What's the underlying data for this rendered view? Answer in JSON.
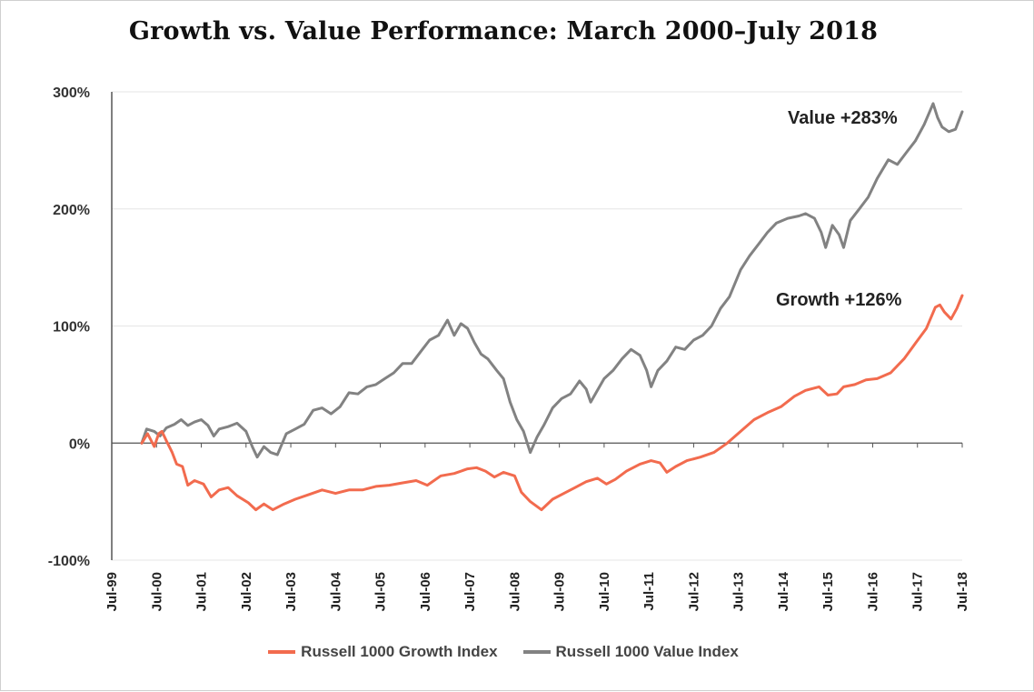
{
  "colors": {
    "growth": "#f26b4e",
    "value": "#828282",
    "axis": "#555555",
    "grid": "#e6e6e6"
  },
  "chart_data": {
    "type": "line",
    "title": "Growth vs. Value Performance: March 2000–July 2018",
    "xlabel": "",
    "ylabel": "",
    "ylim": [
      -100,
      300
    ],
    "yticks": [
      -100,
      0,
      100,
      200,
      300
    ],
    "ytick_labels": [
      "-100%",
      "0%",
      "100%",
      "200%",
      "300%"
    ],
    "xlim": [
      1999.5,
      2018.5
    ],
    "xticks": [
      1999.5,
      2000.5,
      2001.5,
      2002.5,
      2003.5,
      2004.5,
      2005.5,
      2006.5,
      2007.5,
      2008.5,
      2009.5,
      2010.5,
      2011.5,
      2012.5,
      2013.5,
      2014.5,
      2015.5,
      2016.5,
      2017.5,
      2018.5
    ],
    "xtick_labels": [
      "Jul-99",
      "Jul-00",
      "Jul-01",
      "Jul-02",
      "Jul-03",
      "Jul-04",
      "Jul-05",
      "Jul-06",
      "Jul-07",
      "Jul-08",
      "Jul-09",
      "Jul-10",
      "Jul-11",
      "Jul-12",
      "Jul-13",
      "Jul-14",
      "Jul-15",
      "Jul-16",
      "Jul-17",
      "Jul-18"
    ],
    "grid": "horizontal",
    "legend_position": "bottom",
    "series": [
      {
        "name": "Russell 1000 Growth Index",
        "color": "#f26b4e",
        "end_label": "Growth +126%",
        "points": [
          [
            2000.17,
            0
          ],
          [
            2000.3,
            8
          ],
          [
            2000.45,
            -3
          ],
          [
            2000.55,
            8
          ],
          [
            2000.62,
            10
          ],
          [
            2000.72,
            2
          ],
          [
            2000.85,
            -8
          ],
          [
            2000.95,
            -18
          ],
          [
            2001.08,
            -20
          ],
          [
            2001.2,
            -36
          ],
          [
            2001.35,
            -32
          ],
          [
            2001.55,
            -35
          ],
          [
            2001.72,
            -46
          ],
          [
            2001.9,
            -40
          ],
          [
            2002.1,
            -38
          ],
          [
            2002.3,
            -45
          ],
          [
            2002.55,
            -51
          ],
          [
            2002.72,
            -57
          ],
          [
            2002.9,
            -52
          ],
          [
            2003.1,
            -57
          ],
          [
            2003.35,
            -52
          ],
          [
            2003.6,
            -48
          ],
          [
            2003.9,
            -44
          ],
          [
            2004.2,
            -40
          ],
          [
            2004.5,
            -43
          ],
          [
            2004.8,
            -40
          ],
          [
            2005.1,
            -40
          ],
          [
            2005.4,
            -37
          ],
          [
            2005.7,
            -36
          ],
          [
            2006.0,
            -34
          ],
          [
            2006.3,
            -32
          ],
          [
            2006.55,
            -36
          ],
          [
            2006.85,
            -28
          ],
          [
            2007.15,
            -26
          ],
          [
            2007.45,
            -22
          ],
          [
            2007.65,
            -21
          ],
          [
            2007.85,
            -24
          ],
          [
            2008.05,
            -29
          ],
          [
            2008.25,
            -25
          ],
          [
            2008.5,
            -28
          ],
          [
            2008.65,
            -42
          ],
          [
            2008.85,
            -50
          ],
          [
            2009.1,
            -57
          ],
          [
            2009.35,
            -48
          ],
          [
            2009.6,
            -43
          ],
          [
            2009.85,
            -38
          ],
          [
            2010.1,
            -33
          ],
          [
            2010.35,
            -30
          ],
          [
            2010.55,
            -35
          ],
          [
            2010.75,
            -31
          ],
          [
            2011.0,
            -24
          ],
          [
            2011.3,
            -18
          ],
          [
            2011.55,
            -15
          ],
          [
            2011.75,
            -17
          ],
          [
            2011.9,
            -25
          ],
          [
            2012.1,
            -20
          ],
          [
            2012.35,
            -15
          ],
          [
            2012.65,
            -12
          ],
          [
            2012.95,
            -8
          ],
          [
            2013.25,
            0
          ],
          [
            2013.55,
            10
          ],
          [
            2013.85,
            20
          ],
          [
            2014.15,
            26
          ],
          [
            2014.45,
            31
          ],
          [
            2014.75,
            40
          ],
          [
            2015.0,
            45
          ],
          [
            2015.3,
            48
          ],
          [
            2015.5,
            41
          ],
          [
            2015.7,
            42
          ],
          [
            2015.85,
            48
          ],
          [
            2016.1,
            50
          ],
          [
            2016.35,
            54
          ],
          [
            2016.6,
            55
          ],
          [
            2016.9,
            60
          ],
          [
            2017.2,
            72
          ],
          [
            2017.45,
            85
          ],
          [
            2017.7,
            98
          ],
          [
            2017.9,
            116
          ],
          [
            2018.0,
            118
          ],
          [
            2018.1,
            112
          ],
          [
            2018.25,
            106
          ],
          [
            2018.38,
            115
          ],
          [
            2018.5,
            126
          ]
        ]
      },
      {
        "name": "Russell 1000 Value Index",
        "color": "#828282",
        "end_label": "Value +283%",
        "points": [
          [
            2000.17,
            0
          ],
          [
            2000.28,
            12
          ],
          [
            2000.45,
            10
          ],
          [
            2000.58,
            6
          ],
          [
            2000.72,
            13
          ],
          [
            2000.9,
            16
          ],
          [
            2001.05,
            20
          ],
          [
            2001.2,
            15
          ],
          [
            2001.35,
            18
          ],
          [
            2001.5,
            20
          ],
          [
            2001.65,
            15
          ],
          [
            2001.78,
            6
          ],
          [
            2001.9,
            12
          ],
          [
            2002.1,
            14
          ],
          [
            2002.3,
            17
          ],
          [
            2002.5,
            10
          ],
          [
            2002.65,
            -4
          ],
          [
            2002.75,
            -12
          ],
          [
            2002.9,
            -3
          ],
          [
            2003.05,
            -8
          ],
          [
            2003.2,
            -10
          ],
          [
            2003.4,
            8
          ],
          [
            2003.6,
            12
          ],
          [
            2003.8,
            16
          ],
          [
            2004.0,
            28
          ],
          [
            2004.2,
            30
          ],
          [
            2004.4,
            25
          ],
          [
            2004.6,
            31
          ],
          [
            2004.8,
            43
          ],
          [
            2005.0,
            42
          ],
          [
            2005.2,
            48
          ],
          [
            2005.4,
            50
          ],
          [
            2005.6,
            55
          ],
          [
            2005.8,
            60
          ],
          [
            2006.0,
            68
          ],
          [
            2006.2,
            68
          ],
          [
            2006.4,
            78
          ],
          [
            2006.6,
            88
          ],
          [
            2006.8,
            92
          ],
          [
            2007.0,
            105
          ],
          [
            2007.15,
            92
          ],
          [
            2007.3,
            102
          ],
          [
            2007.45,
            98
          ],
          [
            2007.6,
            86
          ],
          [
            2007.75,
            76
          ],
          [
            2007.9,
            72
          ],
          [
            2008.1,
            62
          ],
          [
            2008.25,
            55
          ],
          [
            2008.4,
            35
          ],
          [
            2008.55,
            20
          ],
          [
            2008.7,
            10
          ],
          [
            2008.85,
            -8
          ],
          [
            2009.0,
            5
          ],
          [
            2009.15,
            15
          ],
          [
            2009.35,
            30
          ],
          [
            2009.55,
            38
          ],
          [
            2009.75,
            42
          ],
          [
            2009.95,
            53
          ],
          [
            2010.1,
            46
          ],
          [
            2010.2,
            35
          ],
          [
            2010.35,
            45
          ],
          [
            2010.5,
            55
          ],
          [
            2010.7,
            62
          ],
          [
            2010.9,
            72
          ],
          [
            2011.1,
            80
          ],
          [
            2011.3,
            75
          ],
          [
            2011.45,
            62
          ],
          [
            2011.55,
            48
          ],
          [
            2011.7,
            62
          ],
          [
            2011.9,
            70
          ],
          [
            2012.1,
            82
          ],
          [
            2012.3,
            80
          ],
          [
            2012.5,
            88
          ],
          [
            2012.7,
            92
          ],
          [
            2012.9,
            100
          ],
          [
            2013.1,
            115
          ],
          [
            2013.3,
            125
          ],
          [
            2013.55,
            148
          ],
          [
            2013.75,
            160
          ],
          [
            2013.95,
            170
          ],
          [
            2014.15,
            180
          ],
          [
            2014.35,
            188
          ],
          [
            2014.6,
            192
          ],
          [
            2014.85,
            194
          ],
          [
            2015.0,
            196
          ],
          [
            2015.2,
            192
          ],
          [
            2015.35,
            180
          ],
          [
            2015.45,
            167
          ],
          [
            2015.6,
            186
          ],
          [
            2015.75,
            178
          ],
          [
            2015.85,
            167
          ],
          [
            2016.0,
            190
          ],
          [
            2016.2,
            200
          ],
          [
            2016.4,
            210
          ],
          [
            2016.6,
            226
          ],
          [
            2016.85,
            242
          ],
          [
            2017.05,
            238
          ],
          [
            2017.25,
            248
          ],
          [
            2017.45,
            258
          ],
          [
            2017.65,
            272
          ],
          [
            2017.85,
            290
          ],
          [
            2017.95,
            278
          ],
          [
            2018.05,
            270
          ],
          [
            2018.2,
            266
          ],
          [
            2018.35,
            268
          ],
          [
            2018.5,
            283
          ]
        ]
      }
    ]
  }
}
